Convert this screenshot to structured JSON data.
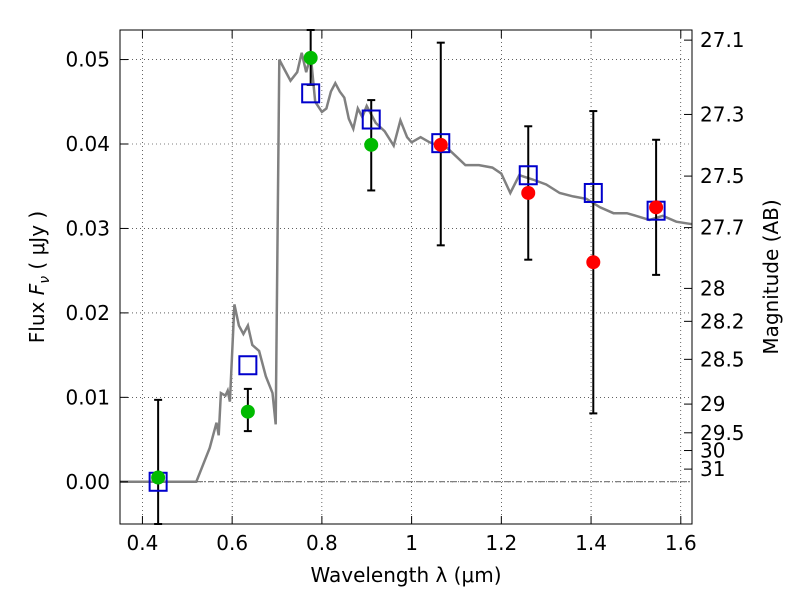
{
  "chart_data": {
    "type": "scatter",
    "xlabel": "Wavelength  λ (μm)",
    "ylabel": "Flux  F_ν  ( μJy )",
    "y2label": "Magnitude (AB)",
    "xlim": [
      0.35,
      1.625
    ],
    "ylim": [
      -0.005,
      0.0535
    ],
    "xticks": [
      0.4,
      0.6,
      0.8,
      1.0,
      1.2,
      1.4,
      1.6
    ],
    "xtick_labels": [
      "0.4",
      "0.6",
      "0.8",
      "1",
      "1.2",
      "1.4",
      "1.6"
    ],
    "yticks": [
      0.0,
      0.01,
      0.02,
      0.03,
      0.04,
      0.05
    ],
    "ytick_labels": [
      "0.00",
      "0.01",
      "0.02",
      "0.03",
      "0.04",
      "0.05"
    ],
    "y2ticks": [
      {
        "flux": 0.0523,
        "label": "27.1"
      },
      {
        "flux": 0.0435,
        "label": "27.3"
      },
      {
        "flux": 0.0362,
        "label": "27.5"
      },
      {
        "flux": 0.0301,
        "label": "27.7"
      },
      {
        "flux": 0.0229,
        "label": "28"
      },
      {
        "flux": 0.019,
        "label": "28.2"
      },
      {
        "flux": 0.0145,
        "label": "28.5"
      },
      {
        "flux": 0.0092,
        "label": "29"
      },
      {
        "flux": 0.0058,
        "label": "29.5"
      },
      {
        "flux": 0.0037,
        "label": "30"
      },
      {
        "flux": 0.0015,
        "label": "31"
      }
    ],
    "grid": true,
    "colors": {
      "model": "#808080",
      "green": "#00bb00",
      "red": "#ff0000",
      "square": "#0000cc",
      "errorbar": "#000000"
    },
    "model_spectrum": [
      [
        0.35,
        0.0
      ],
      [
        0.52,
        0.0
      ],
      [
        0.55,
        0.004
      ],
      [
        0.565,
        0.007
      ],
      [
        0.57,
        0.0055
      ],
      [
        0.575,
        0.0105
      ],
      [
        0.585,
        0.0102
      ],
      [
        0.59,
        0.0108
      ],
      [
        0.595,
        0.0095
      ],
      [
        0.605,
        0.021
      ],
      [
        0.615,
        0.0185
      ],
      [
        0.625,
        0.0175
      ],
      [
        0.635,
        0.0185
      ],
      [
        0.645,
        0.0162
      ],
      [
        0.66,
        0.0155
      ],
      [
        0.675,
        0.0125
      ],
      [
        0.69,
        0.0105
      ],
      [
        0.697,
        0.0068
      ],
      [
        0.705,
        0.05
      ],
      [
        0.715,
        0.049
      ],
      [
        0.73,
        0.0475
      ],
      [
        0.745,
        0.0485
      ],
      [
        0.755,
        0.0508
      ],
      [
        0.765,
        0.0485
      ],
      [
        0.775,
        0.0505
      ],
      [
        0.785,
        0.045
      ],
      [
        0.8,
        0.0438
      ],
      [
        0.81,
        0.0442
      ],
      [
        0.82,
        0.0462
      ],
      [
        0.83,
        0.0472
      ],
      [
        0.84,
        0.0462
      ],
      [
        0.85,
        0.0455
      ],
      [
        0.86,
        0.043
      ],
      [
        0.87,
        0.0418
      ],
      [
        0.88,
        0.0442
      ],
      [
        0.89,
        0.0432
      ],
      [
        0.9,
        0.0445
      ],
      [
        0.92,
        0.0425
      ],
      [
        0.94,
        0.0415
      ],
      [
        0.96,
        0.0398
      ],
      [
        0.975,
        0.0428
      ],
      [
        0.99,
        0.0408
      ],
      [
        1.0,
        0.0402
      ],
      [
        1.02,
        0.0408
      ],
      [
        1.04,
        0.0402
      ],
      [
        1.06,
        0.0398
      ],
      [
        1.08,
        0.0395
      ],
      [
        1.1,
        0.0385
      ],
      [
        1.12,
        0.0375
      ],
      [
        1.15,
        0.0375
      ],
      [
        1.18,
        0.0372
      ],
      [
        1.2,
        0.0365
      ],
      [
        1.22,
        0.0342
      ],
      [
        1.24,
        0.0363
      ],
      [
        1.27,
        0.0358
      ],
      [
        1.3,
        0.0352
      ],
      [
        1.33,
        0.0342
      ],
      [
        1.36,
        0.0338
      ],
      [
        1.39,
        0.0335
      ],
      [
        1.42,
        0.0325
      ],
      [
        1.45,
        0.0318
      ],
      [
        1.48,
        0.0318
      ],
      [
        1.5,
        0.0315
      ],
      [
        1.53,
        0.031
      ],
      [
        1.56,
        0.0315
      ],
      [
        1.59,
        0.0308
      ],
      [
        1.625,
        0.0305
      ]
    ],
    "series": [
      {
        "marker": "circle",
        "color": "green",
        "points": [
          {
            "x": 0.435,
            "y": 0.0005
          },
          {
            "x": 0.635,
            "y": 0.0083
          },
          {
            "x": 0.775,
            "y": 0.0502
          },
          {
            "x": 0.91,
            "y": 0.0399
          }
        ]
      },
      {
        "marker": "circle",
        "color": "red",
        "points": [
          {
            "x": 1.065,
            "y": 0.0399
          },
          {
            "x": 1.26,
            "y": 0.0342
          },
          {
            "x": 1.405,
            "y": 0.026
          },
          {
            "x": 1.545,
            "y": 0.0325
          }
        ]
      },
      {
        "marker": "square",
        "color": "square",
        "points": [
          {
            "x": 0.435,
            "y": 0.0
          },
          {
            "x": 0.635,
            "y": 0.0138
          },
          {
            "x": 0.775,
            "y": 0.046
          },
          {
            "x": 0.91,
            "y": 0.0429
          },
          {
            "x": 1.065,
            "y": 0.0401
          },
          {
            "x": 1.26,
            "y": 0.0363
          },
          {
            "x": 1.405,
            "y": 0.0342
          },
          {
            "x": 1.545,
            "y": 0.0321
          }
        ]
      }
    ],
    "error_bars": [
      {
        "x": 0.435,
        "low": -0.005,
        "high": 0.0097
      },
      {
        "x": 0.635,
        "low": 0.006,
        "high": 0.011
      },
      {
        "x": 0.775,
        "low": 0.047,
        "high": 0.0535
      },
      {
        "x": 0.91,
        "low": 0.0345,
        "high": 0.0452
      },
      {
        "x": 1.065,
        "low": 0.028,
        "high": 0.052
      },
      {
        "x": 1.26,
        "low": 0.0263,
        "high": 0.0421
      },
      {
        "x": 1.405,
        "low": 0.0081,
        "high": 0.0439
      },
      {
        "x": 1.545,
        "low": 0.0245,
        "high": 0.0405
      }
    ]
  }
}
